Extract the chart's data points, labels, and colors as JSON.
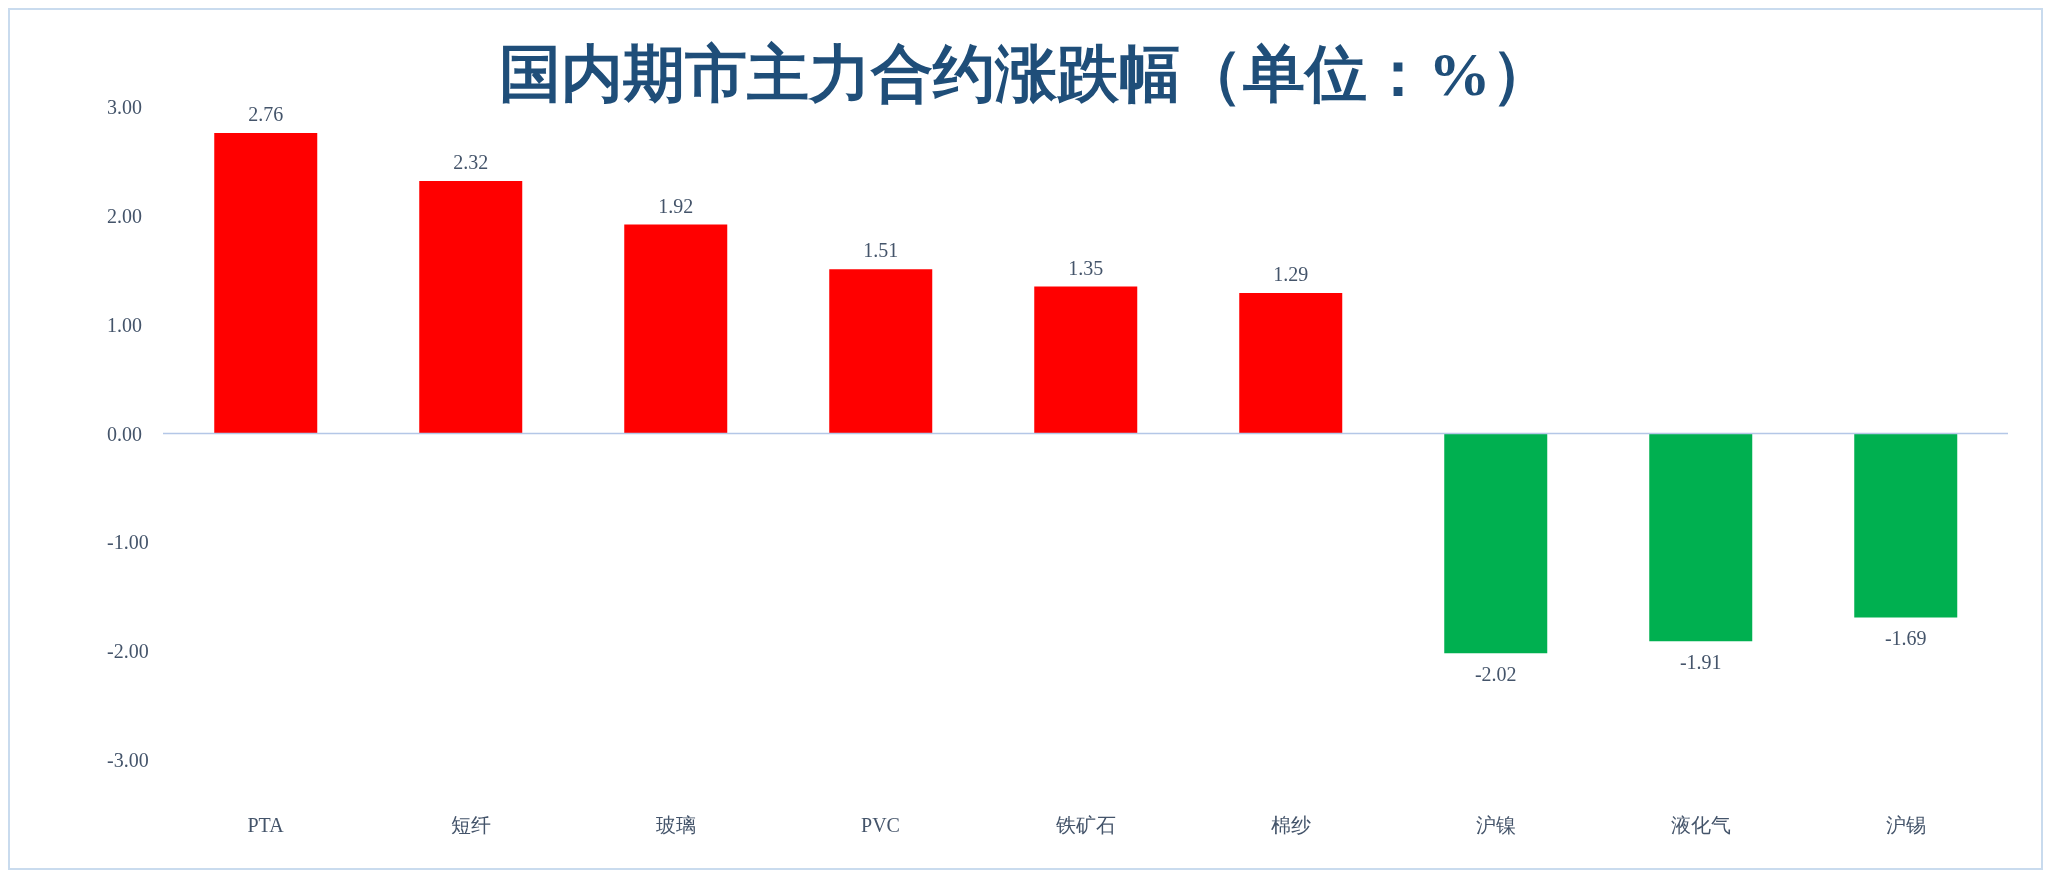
{
  "chart_data": {
    "type": "bar",
    "title": "国内期市主力合约涨跌幅（单位：%）",
    "categories": [
      "PTA",
      "短纤",
      "玻璃",
      "PVC",
      "铁矿石",
      "棉纱",
      "沪镍",
      "液化气",
      "沪锡"
    ],
    "values": [
      2.76,
      2.32,
      1.92,
      1.51,
      1.35,
      1.29,
      -2.02,
      -1.91,
      -1.69
    ],
    "colors": [
      "#ff0000",
      "#ff0000",
      "#ff0000",
      "#ff0000",
      "#ff0000",
      "#ff0000",
      "#00b050",
      "#00b050",
      "#00b050"
    ],
    "ylim": [
      -3,
      3
    ],
    "yticks": [
      {
        "value": -3,
        "label": "-3.00"
      },
      {
        "value": -2,
        "label": "-2.00"
      },
      {
        "value": -1,
        "label": "-1.00"
      },
      {
        "value": 0,
        "label": "0.00"
      },
      {
        "value": 1,
        "label": "1.00"
      },
      {
        "value": 2,
        "label": "2.00"
      },
      {
        "value": 3,
        "label": "3.00"
      }
    ],
    "ref_lines": [
      {
        "axis": "y",
        "value": 0,
        "color": "#b4c7e7"
      }
    ],
    "grid": false,
    "legend": false,
    "data_labels": true
  }
}
